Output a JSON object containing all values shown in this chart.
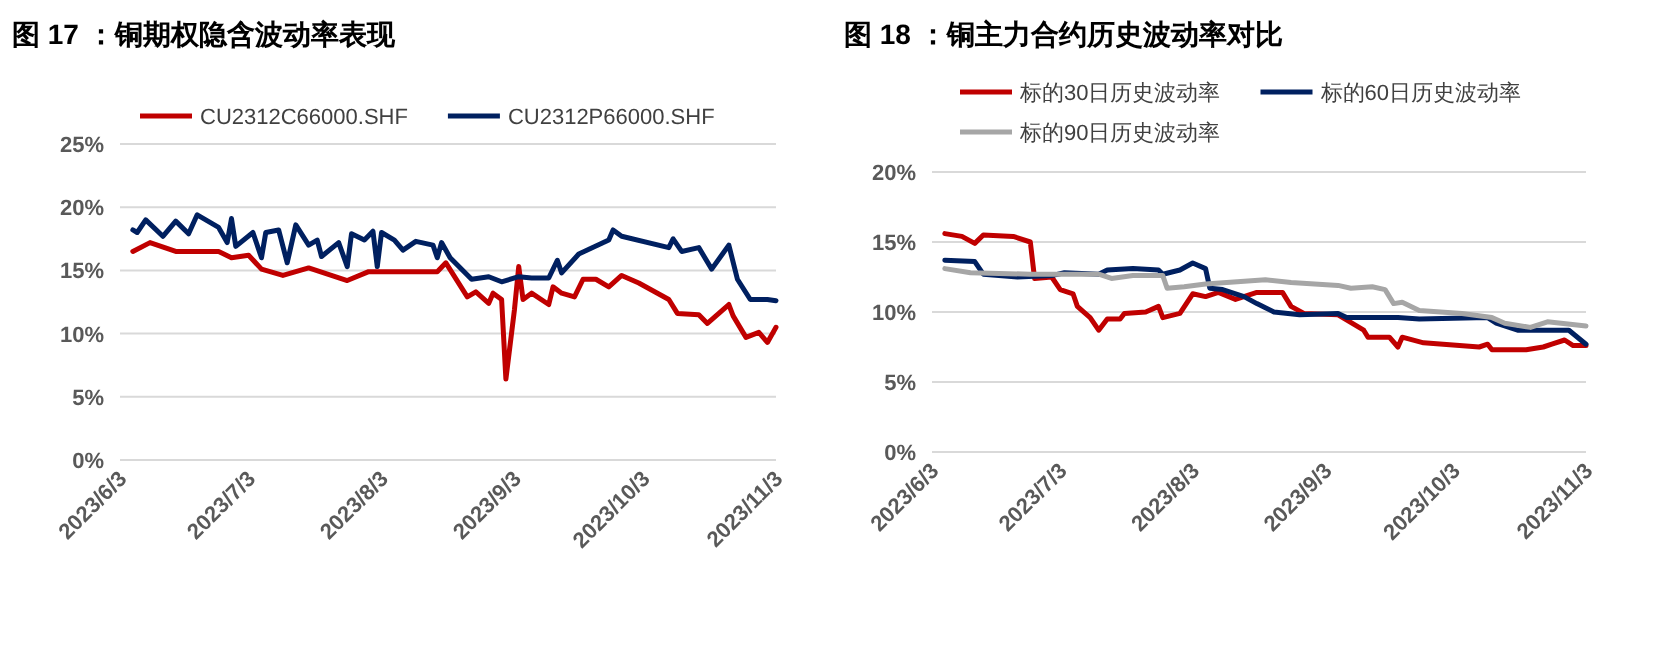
{
  "chart_data": [
    {
      "type": "line",
      "title": "图 17 ：铜期权隐含波动率表现",
      "legend": "top",
      "grid": "y",
      "line_style": "solid",
      "marker": "none",
      "xlim": [
        "2023-06-03",
        "2023-11-03"
      ],
      "xticks": [
        {
          "value": "2023-06-03",
          "label": "2023/6/3"
        },
        {
          "value": "2023-07-03",
          "label": "2023/7/3"
        },
        {
          "value": "2023-08-03",
          "label": "2023/8/3"
        },
        {
          "value": "2023-09-03",
          "label": "2023/9/3"
        },
        {
          "value": "2023-10-03",
          "label": "2023/10/3"
        },
        {
          "value": "2023-11-03",
          "label": "2023/11/3"
        }
      ],
      "ylim": [
        0,
        25
      ],
      "yticks": [
        {
          "value": 0,
          "label": "0%"
        },
        {
          "value": 5,
          "label": "5%"
        },
        {
          "value": 10,
          "label": "10%"
        },
        {
          "value": 15,
          "label": "15%"
        },
        {
          "value": 20,
          "label": "20%"
        },
        {
          "value": 25,
          "label": "25%"
        }
      ],
      "series": [
        {
          "name": "CU2312C66000.SHF",
          "color": "#c00000",
          "x": [
            "2023-06-06",
            "2023-06-10",
            "2023-06-16",
            "2023-06-26",
            "2023-06-29",
            "2023-07-03",
            "2023-07-06",
            "2023-07-11",
            "2023-07-17",
            "2023-07-26",
            "2023-07-31",
            "2023-08-16",
            "2023-08-18",
            "2023-08-23",
            "2023-08-25",
            "2023-08-28",
            "2023-08-29",
            "2023-08-31",
            "2023-09-01",
            "2023-09-03",
            "2023-09-04",
            "2023-09-05",
            "2023-09-07",
            "2023-09-11",
            "2023-09-12",
            "2023-09-14",
            "2023-09-17",
            "2023-09-19",
            "2023-09-22",
            "2023-09-25",
            "2023-09-28",
            "2023-10-02",
            "2023-10-09",
            "2023-10-11",
            "2023-10-16",
            "2023-10-18",
            "2023-10-23",
            "2023-10-24",
            "2023-10-27",
            "2023-10-30",
            "2023-11-01",
            "2023-11-03"
          ],
          "values": [
            16.5,
            17.2,
            16.5,
            16.5,
            16.0,
            16.2,
            15.1,
            14.6,
            15.2,
            14.2,
            14.9,
            14.9,
            15.6,
            12.9,
            13.3,
            12.4,
            13.2,
            12.7,
            6.4,
            11.9,
            15.3,
            12.7,
            13.2,
            12.3,
            13.7,
            13.2,
            12.9,
            14.3,
            14.3,
            13.7,
            14.6,
            14.0,
            12.7,
            11.6,
            11.5,
            10.8,
            12.3,
            11.4,
            9.7,
            10.1,
            9.3,
            10.5
          ]
        },
        {
          "name": "CU2312P66000.SHF",
          "color": "#002060",
          "x": [
            "2023-06-06",
            "2023-06-07",
            "2023-06-09",
            "2023-06-13",
            "2023-06-16",
            "2023-06-19",
            "2023-06-21",
            "2023-06-26",
            "2023-06-28",
            "2023-06-29",
            "2023-06-30",
            "2023-07-04",
            "2023-07-06",
            "2023-07-07",
            "2023-07-10",
            "2023-07-12",
            "2023-07-14",
            "2023-07-17",
            "2023-07-19",
            "2023-07-20",
            "2023-07-24",
            "2023-07-26",
            "2023-07-27",
            "2023-07-30",
            "2023-08-01",
            "2023-08-02",
            "2023-08-03",
            "2023-08-06",
            "2023-08-08",
            "2023-08-11",
            "2023-08-15",
            "2023-08-16",
            "2023-08-17",
            "2023-08-19",
            "2023-08-24",
            "2023-08-28",
            "2023-08-31",
            "2023-09-04",
            "2023-09-07",
            "2023-09-11",
            "2023-09-13",
            "2023-09-14",
            "2023-09-18",
            "2023-09-25",
            "2023-09-26",
            "2023-09-28",
            "2023-10-09",
            "2023-10-10",
            "2023-10-12",
            "2023-10-16",
            "2023-10-19",
            "2023-10-23",
            "2023-10-25",
            "2023-10-28",
            "2023-11-01",
            "2023-11-03"
          ],
          "values": [
            18.2,
            18.0,
            19.0,
            17.7,
            18.9,
            17.9,
            19.4,
            18.4,
            17.2,
            19.1,
            16.9,
            18.0,
            16.0,
            18.0,
            18.2,
            15.6,
            18.6,
            17.0,
            17.4,
            16.1,
            17.2,
            15.3,
            17.9,
            17.4,
            18.1,
            15.3,
            18.0,
            17.4,
            16.6,
            17.3,
            17.0,
            16.0,
            17.2,
            16.0,
            14.3,
            14.5,
            14.1,
            14.5,
            14.4,
            14.4,
            15.8,
            14.8,
            16.3,
            17.4,
            18.2,
            17.7,
            16.8,
            17.5,
            16.5,
            16.8,
            15.1,
            17.0,
            14.3,
            12.7,
            12.7,
            12.6
          ]
        }
      ]
    },
    {
      "type": "line",
      "title": "图 18 ：铜主力合约历史波动率对比",
      "legend": "top",
      "grid": "y",
      "line_style": "solid",
      "marker": "none",
      "xlim": [
        "2023-06-03",
        "2023-11-03"
      ],
      "xticks": [
        {
          "value": "2023-06-03",
          "label": "2023/6/3"
        },
        {
          "value": "2023-07-03",
          "label": "2023/7/3"
        },
        {
          "value": "2023-08-03",
          "label": "2023/8/3"
        },
        {
          "value": "2023-09-03",
          "label": "2023/9/3"
        },
        {
          "value": "2023-10-03",
          "label": "2023/10/3"
        },
        {
          "value": "2023-11-03",
          "label": "2023/11/3"
        }
      ],
      "ylim": [
        0,
        20
      ],
      "yticks": [
        {
          "value": 0,
          "label": "0%"
        },
        {
          "value": 5,
          "label": "5%"
        },
        {
          "value": 10,
          "label": "10%"
        },
        {
          "value": 15,
          "label": "15%"
        },
        {
          "value": 20,
          "label": "20%"
        }
      ],
      "series": [
        {
          "name": "标的30日历史波动率",
          "color": "#c00000",
          "x": [
            "2023-06-06",
            "2023-06-10",
            "2023-06-13",
            "2023-06-15",
            "2023-06-22",
            "2023-06-26",
            "2023-06-27",
            "2023-07-01",
            "2023-07-03",
            "2023-07-06",
            "2023-07-07",
            "2023-07-10",
            "2023-07-12",
            "2023-07-14",
            "2023-07-17",
            "2023-07-18",
            "2023-07-23",
            "2023-07-26",
            "2023-07-27",
            "2023-07-31",
            "2023-08-03",
            "2023-08-06",
            "2023-08-09",
            "2023-08-13",
            "2023-08-18",
            "2023-08-24",
            "2023-08-26",
            "2023-08-29",
            "2023-09-06",
            "2023-09-12",
            "2023-09-13",
            "2023-09-18",
            "2023-09-20",
            "2023-09-21",
            "2023-09-26",
            "2023-10-09",
            "2023-10-11",
            "2023-10-12",
            "2023-10-20",
            "2023-10-24",
            "2023-10-26",
            "2023-10-29",
            "2023-10-31",
            "2023-11-03"
          ],
          "values": [
            15.6,
            15.4,
            14.9,
            15.5,
            15.4,
            15.0,
            12.4,
            12.5,
            11.6,
            11.3,
            10.4,
            9.6,
            8.7,
            9.5,
            9.5,
            9.9,
            10.0,
            10.4,
            9.6,
            9.9,
            11.3,
            11.1,
            11.4,
            10.9,
            11.4,
            11.4,
            10.4,
            9.9,
            9.8,
            8.7,
            8.2,
            8.2,
            7.5,
            8.2,
            7.8,
            7.5,
            7.7,
            7.3,
            7.3,
            7.5,
            7.7,
            8.0,
            7.6,
            7.6
          ]
        },
        {
          "name": "标的60日历史波动率",
          "color": "#002060",
          "x": [
            "2023-06-06",
            "2023-06-13",
            "2023-06-15",
            "2023-06-23",
            "2023-07-01",
            "2023-07-04",
            "2023-07-12",
            "2023-07-14",
            "2023-07-20",
            "2023-07-26",
            "2023-07-27",
            "2023-07-31",
            "2023-08-03",
            "2023-08-06",
            "2023-08-07",
            "2023-08-10",
            "2023-08-15",
            "2023-08-18",
            "2023-08-22",
            "2023-08-28",
            "2023-09-06",
            "2023-09-08",
            "2023-09-20",
            "2023-09-25",
            "2023-10-11",
            "2023-10-13",
            "2023-10-18",
            "2023-10-27",
            "2023-10-30",
            "2023-11-03"
          ],
          "values": [
            13.7,
            13.6,
            12.7,
            12.5,
            12.6,
            12.8,
            12.7,
            13.0,
            13.1,
            13.0,
            12.7,
            13.0,
            13.5,
            13.1,
            11.7,
            11.6,
            11.1,
            10.6,
            10.0,
            9.8,
            9.9,
            9.6,
            9.6,
            9.5,
            9.6,
            9.2,
            8.7,
            8.7,
            8.7,
            7.7
          ]
        },
        {
          "name": "标的90日历史波动率",
          "color": "#a6a6a6",
          "x": [
            "2023-06-06",
            "2023-06-12",
            "2023-06-26",
            "2023-07-12",
            "2023-07-15",
            "2023-07-20",
            "2023-07-27",
            "2023-07-28",
            "2023-08-01",
            "2023-08-06",
            "2023-08-20",
            "2023-08-26",
            "2023-09-06",
            "2023-09-09",
            "2023-09-14",
            "2023-09-17",
            "2023-09-19",
            "2023-09-21",
            "2023-09-25",
            "2023-10-05",
            "2023-10-12",
            "2023-10-15",
            "2023-10-21",
            "2023-10-25",
            "2023-11-03"
          ],
          "values": [
            13.1,
            12.8,
            12.7,
            12.7,
            12.4,
            12.6,
            12.6,
            11.7,
            11.8,
            12.0,
            12.3,
            12.1,
            11.9,
            11.7,
            11.8,
            11.6,
            10.6,
            10.7,
            10.1,
            9.9,
            9.6,
            9.2,
            8.9,
            9.3,
            9.0
          ]
        }
      ]
    }
  ]
}
